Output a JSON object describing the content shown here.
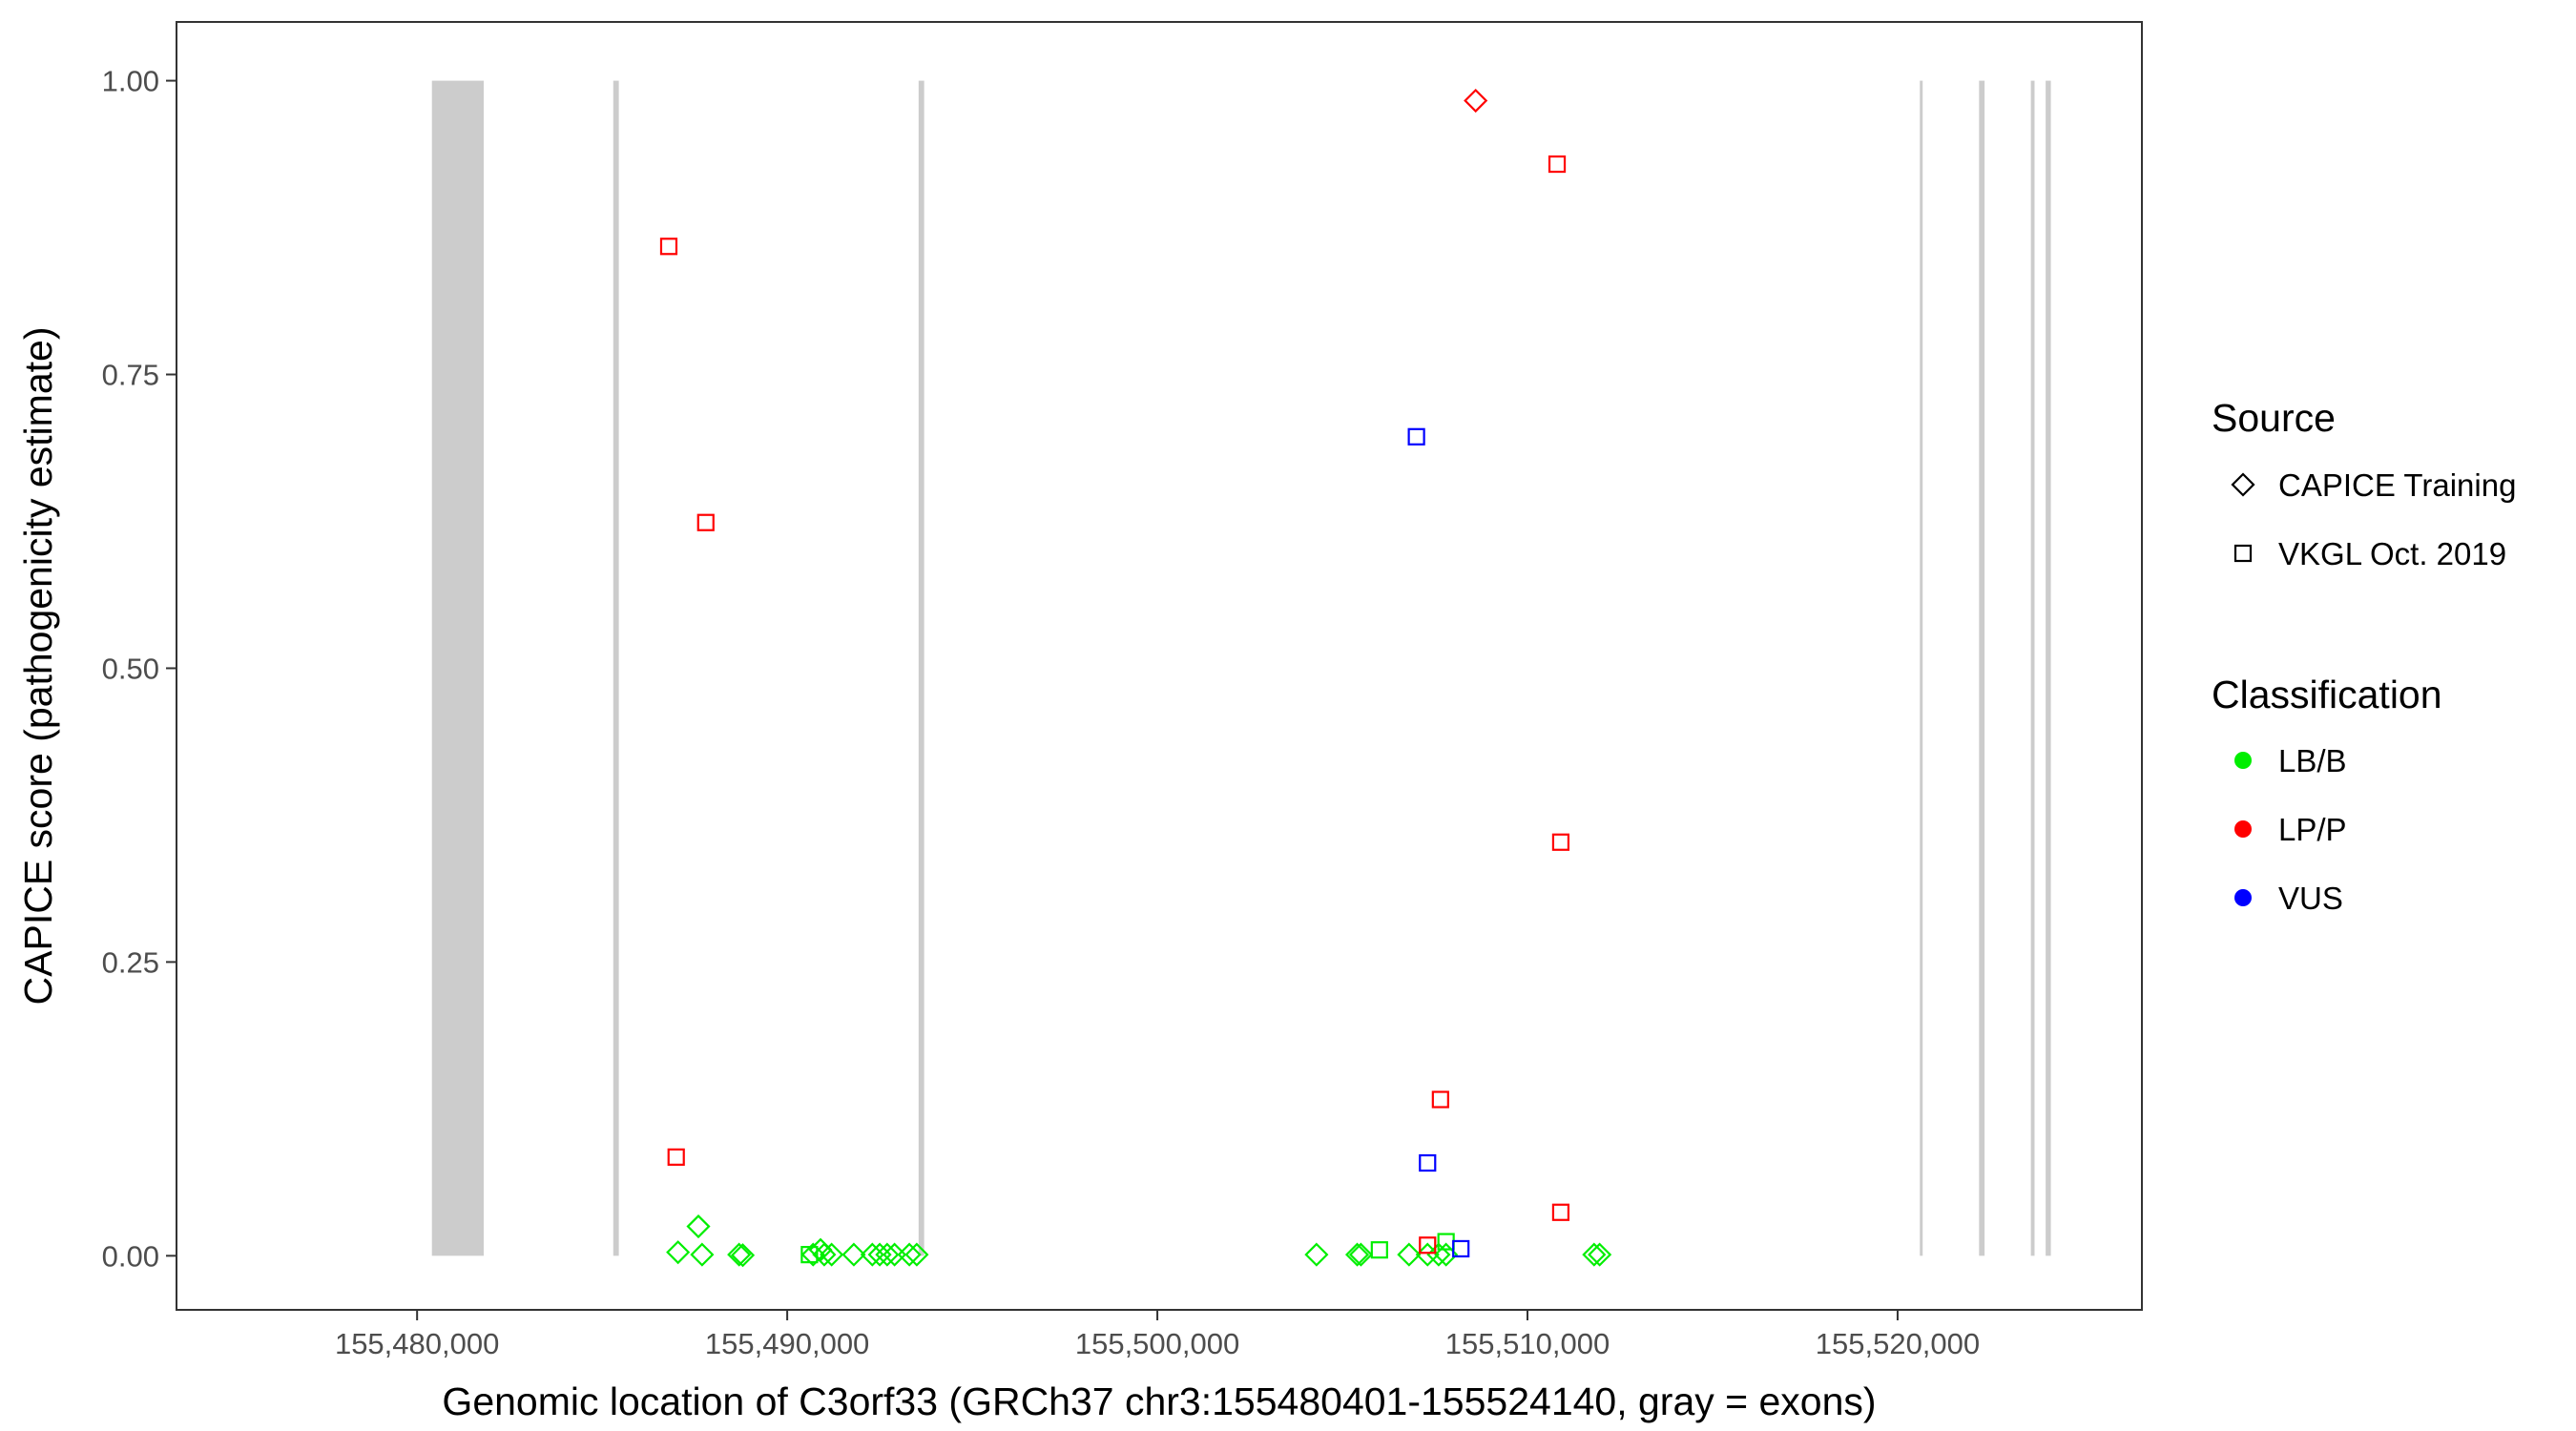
{
  "chart_data": {
    "type": "scatter",
    "xlabel": "Genomic location of C3orf33 (GRCh37 chr3:155480401-155524140, gray = exons)",
    "ylabel": "CAPICE score (pathogenicity estimate)",
    "xlim": [
      155473500,
      155526600
    ],
    "ylim": [
      -0.046,
      1.05
    ],
    "x_ticks": [
      155480000,
      155490000,
      155500000,
      155510000,
      155520000
    ],
    "x_tick_labels": [
      "155,480,000",
      "155,490,000",
      "155,500,000",
      "155,510,000",
      "155,520,000"
    ],
    "y_ticks": [
      0,
      0.25,
      0.5,
      0.75,
      1
    ],
    "y_tick_labels": [
      "0.00",
      "0.25",
      "0.50",
      "0.75",
      "1.00"
    ],
    "grid": false,
    "legend_position": "right",
    "exons": [
      {
        "start": 155480401,
        "end": 155481800
      },
      {
        "start": 155485300,
        "end": 155485450
      },
      {
        "start": 155493550,
        "end": 155493700
      },
      {
        "start": 155520600,
        "end": 155520650
      },
      {
        "start": 155522200,
        "end": 155522350
      },
      {
        "start": 155523600,
        "end": 155523700
      },
      {
        "start": 155524000,
        "end": 155524140
      }
    ],
    "legend": {
      "source": {
        "title": "Source",
        "items": [
          {
            "label": "CAPICE Training",
            "shape": "diamond"
          },
          {
            "label": "VKGL Oct. 2019",
            "shape": "square"
          }
        ]
      },
      "classification": {
        "title": "Classification",
        "items": [
          {
            "label": "LB/B",
            "color": "#00ee00"
          },
          {
            "label": "LP/P",
            "color": "#ff0000"
          },
          {
            "label": "VUS",
            "color": "#0000ff"
          }
        ]
      }
    },
    "series": [
      {
        "source": "CAPICE Training",
        "classification": "LB/B",
        "points": [
          {
            "x": 155487050,
            "y": 0.003
          },
          {
            "x": 155487600,
            "y": 0.025
          },
          {
            "x": 155487700,
            "y": 0.001
          },
          {
            "x": 155488700,
            "y": 0.001
          },
          {
            "x": 155488800,
            "y": 0.0005
          },
          {
            "x": 155490700,
            "y": 0.001
          },
          {
            "x": 155490900,
            "y": 0.005
          },
          {
            "x": 155491000,
            "y": 0.001
          },
          {
            "x": 155491200,
            "y": 0.001
          },
          {
            "x": 155491800,
            "y": 0.001
          },
          {
            "x": 155492300,
            "y": 0.001
          },
          {
            "x": 155492500,
            "y": 0.001
          },
          {
            "x": 155492700,
            "y": 0.001
          },
          {
            "x": 155492900,
            "y": 0.001
          },
          {
            "x": 155493300,
            "y": 0.001
          },
          {
            "x": 155493500,
            "y": 0.001
          },
          {
            "x": 155504300,
            "y": 0.001
          },
          {
            "x": 155505400,
            "y": 0.001
          },
          {
            "x": 155505500,
            "y": 0.001
          },
          {
            "x": 155506800,
            "y": 0.001
          },
          {
            "x": 155507300,
            "y": 0.001
          },
          {
            "x": 155507600,
            "y": 0.001
          },
          {
            "x": 155507800,
            "y": 0.001
          },
          {
            "x": 155511800,
            "y": 0.001
          },
          {
            "x": 155511950,
            "y": 0.001
          }
        ]
      },
      {
        "source": "VKGL Oct. 2019",
        "classification": "LB/B",
        "points": [
          {
            "x": 155490600,
            "y": 0.001
          },
          {
            "x": 155506000,
            "y": 0.005
          },
          {
            "x": 155507800,
            "y": 0.012
          }
        ]
      },
      {
        "source": "CAPICE Training",
        "classification": "LP/P",
        "points": [
          {
            "x": 155508600,
            "y": 0.983
          }
        ]
      },
      {
        "source": "VKGL Oct. 2019",
        "classification": "LP/P",
        "points": [
          {
            "x": 155486800,
            "y": 0.859
          },
          {
            "x": 155487000,
            "y": 0.084
          },
          {
            "x": 155487800,
            "y": 0.624
          },
          {
            "x": 155507300,
            "y": 0.009
          },
          {
            "x": 155507650,
            "y": 0.133
          },
          {
            "x": 155510800,
            "y": 0.929
          },
          {
            "x": 155510900,
            "y": 0.352
          },
          {
            "x": 155510900,
            "y": 0.037
          }
        ]
      },
      {
        "source": "VKGL Oct. 2019",
        "classification": "VUS",
        "points": [
          {
            "x": 155507000,
            "y": 0.697
          },
          {
            "x": 155507300,
            "y": 0.079
          },
          {
            "x": 155508200,
            "y": 0.006
          }
        ]
      }
    ]
  }
}
